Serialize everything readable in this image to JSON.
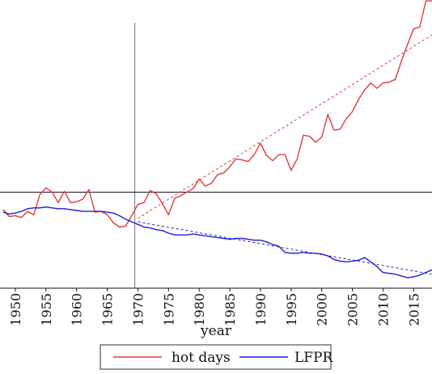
{
  "chart_data": {
    "type": "line",
    "xlabel": "year",
    "x_ticks": [
      "1950",
      "1955",
      "1960",
      "1965",
      "1970",
      "1975",
      "1980",
      "1985",
      "1990",
      "1995",
      "2000",
      "2005",
      "2010",
      "2015"
    ],
    "xlim": [
      1947.5,
      2018
    ],
    "ylim": [
      0,
      330
    ],
    "reference_lines": {
      "vertical_x": 1969.5,
      "horizontal_y": 110
    },
    "grid": false,
    "legend_position": "bottom-center",
    "series": [
      {
        "name": "hot days",
        "color": "#e03a3a",
        "x": [
          1948,
          1949,
          1950,
          1951,
          1952,
          1953,
          1954,
          1955,
          1956,
          1957,
          1958,
          1959,
          1960,
          1961,
          1962,
          1963,
          1964,
          1965,
          1966,
          1967,
          1968,
          1969,
          1970,
          1971,
          1972,
          1973,
          1974,
          1975,
          1976,
          1977,
          1978,
          1979,
          1980,
          1981,
          1982,
          1983,
          1984,
          1985,
          1986,
          1987,
          1988,
          1989,
          1990,
          1991,
          1992,
          1993,
          1994,
          1995,
          1996,
          1997,
          1998,
          1999,
          2000,
          2001,
          2002,
          2003,
          2004,
          2005,
          2006,
          2007,
          2008,
          2009,
          2010,
          2011,
          2012,
          2013,
          2014,
          2015,
          2016,
          2017,
          2018
        ],
        "y": [
          90,
          82,
          83,
          81,
          88,
          84,
          107,
          115,
          110,
          98,
          111,
          98,
          99,
          102,
          113,
          87,
          88,
          84,
          75,
          70,
          71,
          83,
          96,
          98,
          112,
          108,
          97,
          84,
          103,
          106,
          110,
          114,
          125,
          117,
          120,
          130,
          132,
          139,
          148,
          147,
          145,
          153,
          166,
          152,
          146,
          153,
          153,
          135,
          148,
          175,
          174,
          167,
          173,
          199,
          181,
          182,
          194,
          202,
          216,
          227,
          235,
          229,
          235,
          236,
          239,
          260,
          279,
          297,
          299,
          329,
          329
        ]
      },
      {
        "name": "LFPR",
        "color": "#1f1fd6",
        "x": [
          1948,
          1949,
          1950,
          1951,
          1952,
          1953,
          1954,
          1955,
          1956,
          1957,
          1958,
          1959,
          1960,
          1961,
          1962,
          1963,
          1964,
          1965,
          1966,
          1967,
          1968,
          1969,
          1970,
          1971,
          1972,
          1973,
          1974,
          1975,
          1976,
          1977,
          1978,
          1979,
          1980,
          1981,
          1982,
          1983,
          1984,
          1985,
          1986,
          1987,
          1988,
          1989,
          1990,
          1991,
          1992,
          1993,
          1994,
          1995,
          1996,
          1997,
          1998,
          1999,
          2000,
          2001,
          2002,
          2003,
          2004,
          2005,
          2006,
          2007,
          2008,
          2009,
          2010,
          2011,
          2012,
          2013,
          2014,
          2015,
          2016,
          2017,
          2018
        ],
        "y": [
          87,
          85,
          86,
          88,
          91,
          92,
          92,
          93,
          92,
          91,
          91,
          90,
          89,
          88,
          88,
          88,
          88,
          87,
          86,
          83,
          79,
          76,
          73,
          70,
          69,
          67,
          66,
          63,
          61,
          61,
          61,
          62,
          61,
          60,
          59,
          58,
          57,
          56,
          57,
          57,
          56,
          55,
          55,
          53,
          50,
          48,
          41,
          40,
          40,
          41,
          40,
          40,
          39,
          37,
          33,
          31,
          30,
          31,
          32,
          35,
          30,
          25,
          18,
          17,
          16,
          14,
          12,
          13,
          15,
          18,
          21
        ]
      }
    ],
    "trend_lines": [
      {
        "series": "hot days",
        "color": "#e03a3a",
        "x": [
          1970,
          2018
        ],
        "y": [
          80,
          290
        ]
      },
      {
        "series": "LFPR",
        "color": "#1f1fd6",
        "x": [
          1970,
          2018
        ],
        "y": [
          76,
          16
        ]
      }
    ]
  }
}
